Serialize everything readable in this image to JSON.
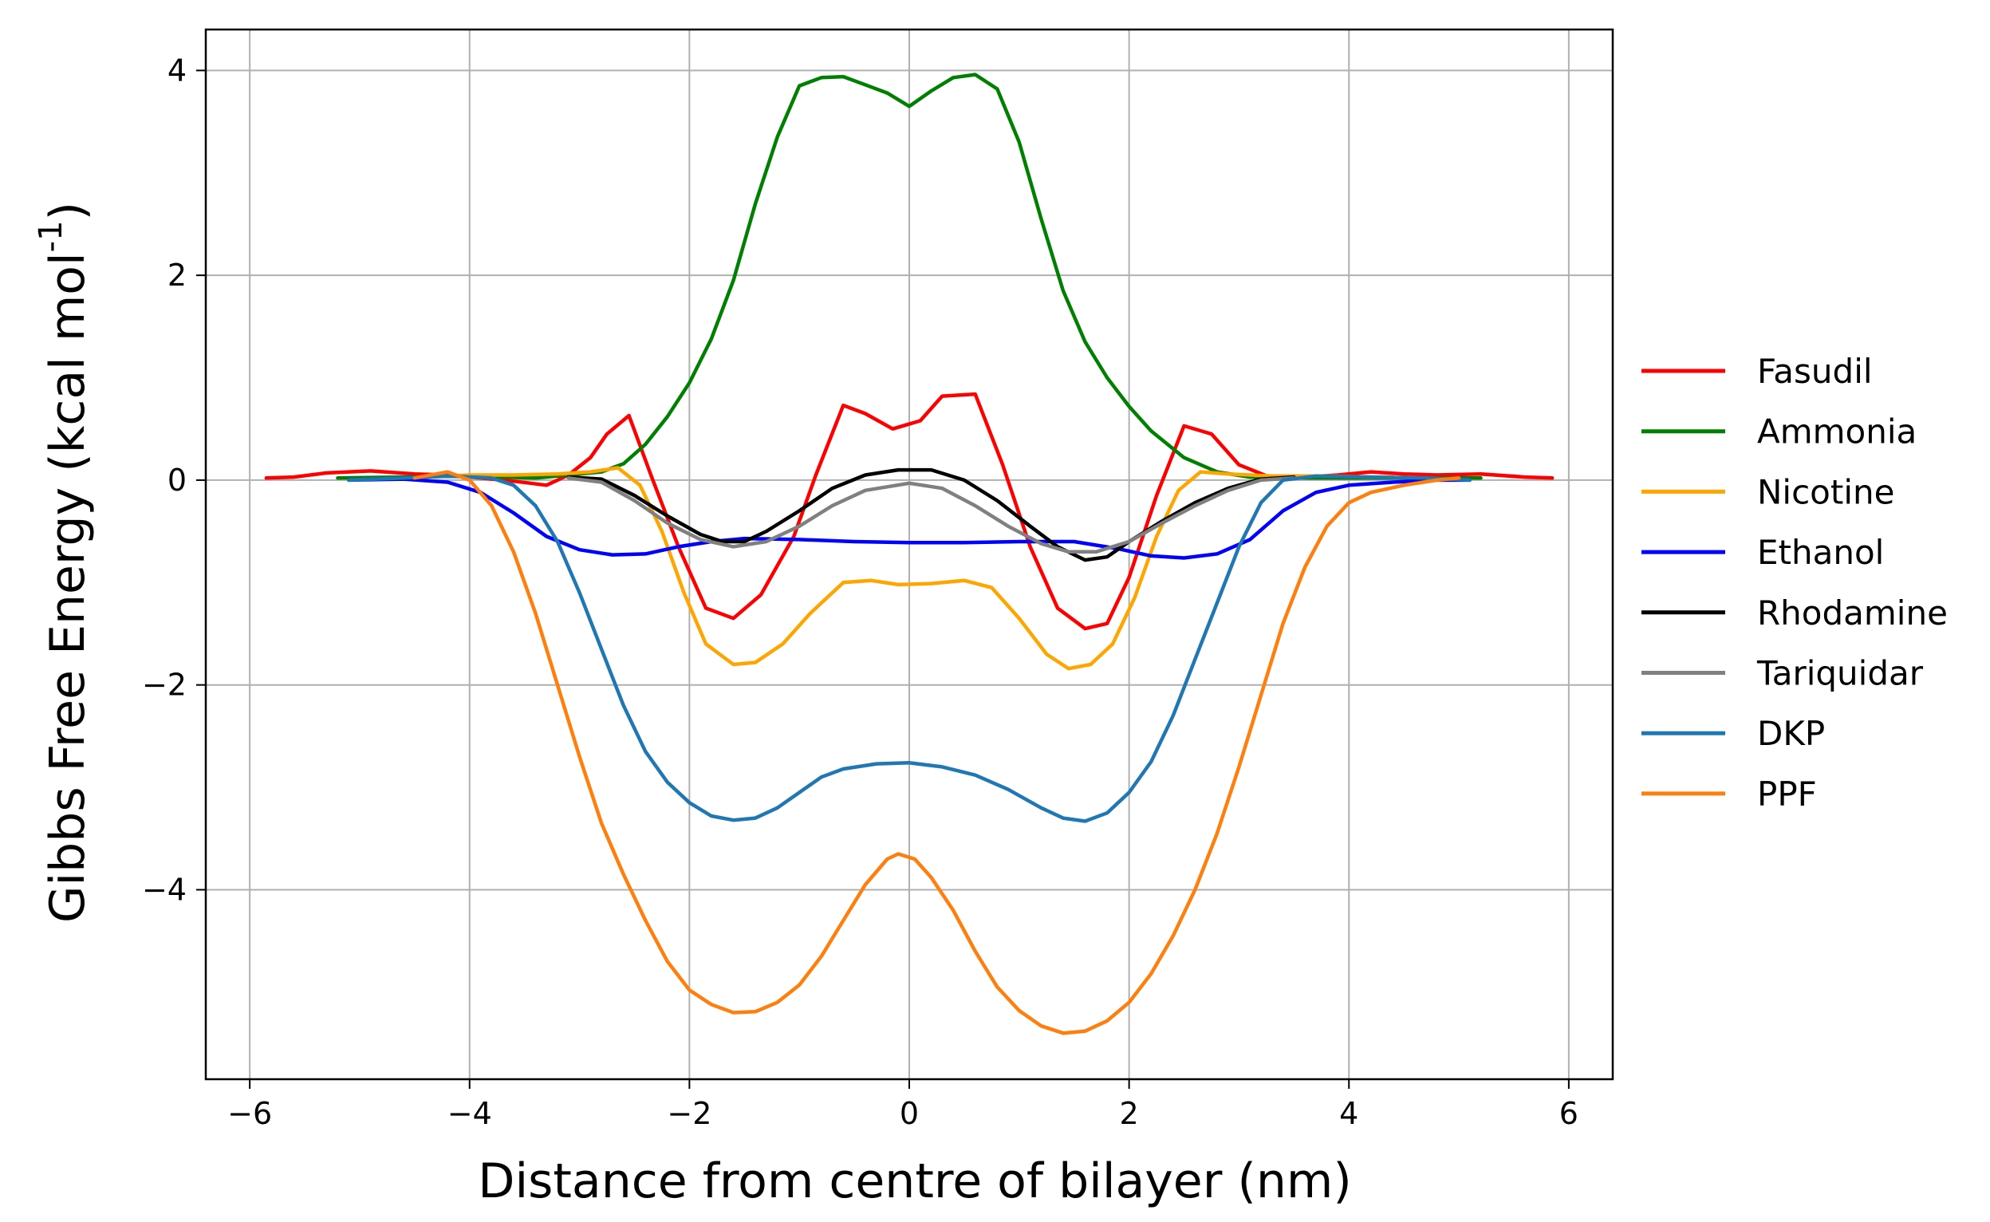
{
  "chart_data": {
    "type": "line",
    "title": "",
    "xlabel": "Distance from centre of bilayer (nm)",
    "ylabel_main": "Gibbs Free Energy (kcal mol",
    "ylabel_sup": "-1",
    "ylabel_close": ")",
    "xlim": [
      -6.4,
      6.4
    ],
    "ylim": [
      -5.85,
      4.4
    ],
    "xticks": [
      -6,
      -4,
      -2,
      0,
      2,
      4,
      6
    ],
    "xtick_labels": [
      "−6",
      "−4",
      "−2",
      "0",
      "2",
      "4",
      "6"
    ],
    "yticks": [
      4,
      2,
      0,
      -2,
      -4
    ],
    "ytick_labels": [
      "4",
      "2",
      "0",
      "−2",
      "−4"
    ],
    "grid": true,
    "legend_position": "right, outside plot",
    "series": [
      {
        "name": "Fasudil",
        "color": "#ff0000",
        "points": [
          [
            -5.85,
            0.02
          ],
          [
            -5.6,
            0.03
          ],
          [
            -5.3,
            0.07
          ],
          [
            -4.9,
            0.09
          ],
          [
            -4.5,
            0.06
          ],
          [
            -4.2,
            0.05
          ],
          [
            -3.9,
            0.02
          ],
          [
            -3.6,
            -0.01
          ],
          [
            -3.3,
            -0.05
          ],
          [
            -3.1,
            0.05
          ],
          [
            -2.9,
            0.22
          ],
          [
            -2.75,
            0.45
          ],
          [
            -2.55,
            0.63
          ],
          [
            -2.35,
            0.05
          ],
          [
            -2.1,
            -0.65
          ],
          [
            -1.85,
            -1.25
          ],
          [
            -1.6,
            -1.35
          ],
          [
            -1.35,
            -1.12
          ],
          [
            -1.05,
            -0.55
          ],
          [
            -0.85,
            0.05
          ],
          [
            -0.6,
            0.73
          ],
          [
            -0.4,
            0.65
          ],
          [
            -0.15,
            0.5
          ],
          [
            0.1,
            0.58
          ],
          [
            0.3,
            0.82
          ],
          [
            0.6,
            0.84
          ],
          [
            0.85,
            0.15
          ],
          [
            1.1,
            -0.65
          ],
          [
            1.35,
            -1.25
          ],
          [
            1.6,
            -1.45
          ],
          [
            1.8,
            -1.4
          ],
          [
            2.0,
            -0.95
          ],
          [
            2.25,
            -0.15
          ],
          [
            2.5,
            0.53
          ],
          [
            2.75,
            0.45
          ],
          [
            3.0,
            0.15
          ],
          [
            3.3,
            0.02
          ],
          [
            3.6,
            0.03
          ],
          [
            3.9,
            0.05
          ],
          [
            4.2,
            0.08
          ],
          [
            4.5,
            0.06
          ],
          [
            4.8,
            0.05
          ],
          [
            5.2,
            0.06
          ],
          [
            5.6,
            0.03
          ],
          [
            5.85,
            0.02
          ]
        ]
      },
      {
        "name": "Ammonia",
        "color": "#008000",
        "points": [
          [
            -5.2,
            0.02
          ],
          [
            -4.6,
            0.03
          ],
          [
            -4.0,
            0.04
          ],
          [
            -3.4,
            0.02
          ],
          [
            -2.8,
            0.08
          ],
          [
            -2.6,
            0.16
          ],
          [
            -2.4,
            0.35
          ],
          [
            -2.2,
            0.62
          ],
          [
            -2.0,
            0.95
          ],
          [
            -1.8,
            1.38
          ],
          [
            -1.6,
            1.95
          ],
          [
            -1.4,
            2.7
          ],
          [
            -1.2,
            3.35
          ],
          [
            -1.0,
            3.85
          ],
          [
            -0.8,
            3.93
          ],
          [
            -0.6,
            3.94
          ],
          [
            -0.4,
            3.86
          ],
          [
            -0.2,
            3.78
          ],
          [
            0.0,
            3.65
          ],
          [
            0.2,
            3.8
          ],
          [
            0.4,
            3.93
          ],
          [
            0.6,
            3.96
          ],
          [
            0.8,
            3.82
          ],
          [
            1.0,
            3.3
          ],
          [
            1.2,
            2.55
          ],
          [
            1.4,
            1.85
          ],
          [
            1.6,
            1.35
          ],
          [
            1.8,
            1.0
          ],
          [
            2.0,
            0.72
          ],
          [
            2.2,
            0.48
          ],
          [
            2.5,
            0.22
          ],
          [
            2.8,
            0.08
          ],
          [
            3.1,
            0.03
          ],
          [
            3.6,
            0.02
          ],
          [
            4.2,
            0.02
          ],
          [
            4.8,
            0.02
          ],
          [
            5.2,
            0.02
          ]
        ]
      },
      {
        "name": "Nicotine",
        "color": "#ffa500",
        "points": [
          [
            -4.4,
            0.03
          ],
          [
            -4.0,
            0.05
          ],
          [
            -3.6,
            0.05
          ],
          [
            -3.2,
            0.06
          ],
          [
            -2.9,
            0.08
          ],
          [
            -2.65,
            0.12
          ],
          [
            -2.45,
            -0.05
          ],
          [
            -2.25,
            -0.5
          ],
          [
            -2.05,
            -1.1
          ],
          [
            -1.85,
            -1.6
          ],
          [
            -1.6,
            -1.8
          ],
          [
            -1.4,
            -1.78
          ],
          [
            -1.15,
            -1.6
          ],
          [
            -0.9,
            -1.3
          ],
          [
            -0.6,
            -1.0
          ],
          [
            -0.35,
            -0.98
          ],
          [
            -0.1,
            -1.02
          ],
          [
            0.2,
            -1.01
          ],
          [
            0.5,
            -0.98
          ],
          [
            0.75,
            -1.05
          ],
          [
            1.0,
            -1.35
          ],
          [
            1.25,
            -1.7
          ],
          [
            1.45,
            -1.84
          ],
          [
            1.65,
            -1.8
          ],
          [
            1.85,
            -1.6
          ],
          [
            2.05,
            -1.15
          ],
          [
            2.25,
            -0.55
          ],
          [
            2.45,
            -0.1
          ],
          [
            2.65,
            0.08
          ],
          [
            2.9,
            0.06
          ],
          [
            3.3,
            0.04
          ],
          [
            3.8,
            0.04
          ],
          [
            4.2,
            0.03
          ],
          [
            4.4,
            0.03
          ]
        ]
      },
      {
        "name": "Ethanol",
        "color": "#0000ff",
        "points": [
          [
            -5.1,
            0.0
          ],
          [
            -4.6,
            0.01
          ],
          [
            -4.2,
            -0.02
          ],
          [
            -3.9,
            -0.12
          ],
          [
            -3.6,
            -0.32
          ],
          [
            -3.3,
            -0.55
          ],
          [
            -3.0,
            -0.68
          ],
          [
            -2.7,
            -0.73
          ],
          [
            -2.4,
            -0.72
          ],
          [
            -2.1,
            -0.65
          ],
          [
            -1.8,
            -0.6
          ],
          [
            -1.5,
            -0.57
          ],
          [
            -1.0,
            -0.58
          ],
          [
            -0.5,
            -0.6
          ],
          [
            0.0,
            -0.61
          ],
          [
            0.5,
            -0.61
          ],
          [
            1.0,
            -0.6
          ],
          [
            1.5,
            -0.6
          ],
          [
            1.9,
            -0.67
          ],
          [
            2.2,
            -0.74
          ],
          [
            2.5,
            -0.76
          ],
          [
            2.8,
            -0.72
          ],
          [
            3.1,
            -0.58
          ],
          [
            3.4,
            -0.3
          ],
          [
            3.7,
            -0.12
          ],
          [
            4.0,
            -0.05
          ],
          [
            4.4,
            -0.02
          ],
          [
            4.8,
            0.0
          ],
          [
            5.1,
            0.0
          ]
        ]
      },
      {
        "name": "Rhodamine",
        "color": "#000000",
        "points": [
          [
            -3.1,
            0.03
          ],
          [
            -2.8,
            0.01
          ],
          [
            -2.5,
            -0.15
          ],
          [
            -2.2,
            -0.35
          ],
          [
            -1.9,
            -0.53
          ],
          [
            -1.7,
            -0.6
          ],
          [
            -1.5,
            -0.6
          ],
          [
            -1.3,
            -0.5
          ],
          [
            -1.0,
            -0.3
          ],
          [
            -0.7,
            -0.08
          ],
          [
            -0.4,
            0.05
          ],
          [
            -0.1,
            0.1
          ],
          [
            0.2,
            0.1
          ],
          [
            0.5,
            0.0
          ],
          [
            0.8,
            -0.2
          ],
          [
            1.1,
            -0.45
          ],
          [
            1.35,
            -0.65
          ],
          [
            1.6,
            -0.78
          ],
          [
            1.8,
            -0.75
          ],
          [
            2.0,
            -0.6
          ],
          [
            2.3,
            -0.4
          ],
          [
            2.6,
            -0.22
          ],
          [
            2.9,
            -0.08
          ],
          [
            3.2,
            0.01
          ],
          [
            3.5,
            0.03
          ]
        ]
      },
      {
        "name": "Tariquidar",
        "color": "#808080",
        "points": [
          [
            -3.1,
            0.02
          ],
          [
            -2.8,
            -0.02
          ],
          [
            -2.5,
            -0.2
          ],
          [
            -2.2,
            -0.42
          ],
          [
            -1.9,
            -0.58
          ],
          [
            -1.6,
            -0.65
          ],
          [
            -1.3,
            -0.6
          ],
          [
            -1.0,
            -0.45
          ],
          [
            -0.7,
            -0.25
          ],
          [
            -0.4,
            -0.1
          ],
          [
            0.0,
            -0.03
          ],
          [
            0.3,
            -0.08
          ],
          [
            0.6,
            -0.25
          ],
          [
            0.9,
            -0.45
          ],
          [
            1.2,
            -0.62
          ],
          [
            1.45,
            -0.7
          ],
          [
            1.7,
            -0.7
          ],
          [
            2.0,
            -0.6
          ],
          [
            2.3,
            -0.42
          ],
          [
            2.6,
            -0.25
          ],
          [
            2.9,
            -0.1
          ],
          [
            3.2,
            0.0
          ],
          [
            3.5,
            0.02
          ]
        ]
      },
      {
        "name": "DKP",
        "color": "#1f77b4",
        "points": [
          [
            -5.1,
            0.0
          ],
          [
            -4.6,
            0.02
          ],
          [
            -4.2,
            0.04
          ],
          [
            -3.8,
            0.02
          ],
          [
            -3.6,
            -0.05
          ],
          [
            -3.4,
            -0.25
          ],
          [
            -3.2,
            -0.6
          ],
          [
            -3.0,
            -1.1
          ],
          [
            -2.8,
            -1.65
          ],
          [
            -2.6,
            -2.2
          ],
          [
            -2.4,
            -2.65
          ],
          [
            -2.2,
            -2.95
          ],
          [
            -2.0,
            -3.15
          ],
          [
            -1.8,
            -3.28
          ],
          [
            -1.6,
            -3.32
          ],
          [
            -1.4,
            -3.3
          ],
          [
            -1.2,
            -3.2
          ],
          [
            -1.0,
            -3.05
          ],
          [
            -0.8,
            -2.9
          ],
          [
            -0.6,
            -2.82
          ],
          [
            -0.3,
            -2.77
          ],
          [
            0.0,
            -2.76
          ],
          [
            0.3,
            -2.8
          ],
          [
            0.6,
            -2.88
          ],
          [
            0.9,
            -3.02
          ],
          [
            1.2,
            -3.2
          ],
          [
            1.4,
            -3.3
          ],
          [
            1.6,
            -3.33
          ],
          [
            1.8,
            -3.25
          ],
          [
            2.0,
            -3.05
          ],
          [
            2.2,
            -2.75
          ],
          [
            2.4,
            -2.3
          ],
          [
            2.6,
            -1.75
          ],
          [
            2.8,
            -1.2
          ],
          [
            3.0,
            -0.65
          ],
          [
            3.2,
            -0.22
          ],
          [
            3.4,
            0.0
          ],
          [
            3.7,
            0.04
          ],
          [
            4.2,
            0.03
          ],
          [
            4.7,
            0.02
          ],
          [
            5.1,
            0.0
          ]
        ]
      },
      {
        "name": "PPF",
        "color": "#ff7f0e",
        "points": [
          [
            -4.5,
            0.02
          ],
          [
            -4.2,
            0.08
          ],
          [
            -4.0,
            0.0
          ],
          [
            -3.8,
            -0.25
          ],
          [
            -3.6,
            -0.7
          ],
          [
            -3.4,
            -1.3
          ],
          [
            -3.2,
            -2.0
          ],
          [
            -3.0,
            -2.7
          ],
          [
            -2.8,
            -3.35
          ],
          [
            -2.6,
            -3.85
          ],
          [
            -2.4,
            -4.3
          ],
          [
            -2.2,
            -4.7
          ],
          [
            -2.0,
            -4.98
          ],
          [
            -1.8,
            -5.12
          ],
          [
            -1.6,
            -5.2
          ],
          [
            -1.4,
            -5.19
          ],
          [
            -1.2,
            -5.1
          ],
          [
            -1.0,
            -4.93
          ],
          [
            -0.8,
            -4.65
          ],
          [
            -0.6,
            -4.3
          ],
          [
            -0.4,
            -3.95
          ],
          [
            -0.2,
            -3.7
          ],
          [
            -0.1,
            -3.65
          ],
          [
            0.05,
            -3.7
          ],
          [
            0.2,
            -3.88
          ],
          [
            0.4,
            -4.2
          ],
          [
            0.6,
            -4.6
          ],
          [
            0.8,
            -4.95
          ],
          [
            1.0,
            -5.18
          ],
          [
            1.2,
            -5.33
          ],
          [
            1.4,
            -5.4
          ],
          [
            1.6,
            -5.38
          ],
          [
            1.8,
            -5.28
          ],
          [
            2.0,
            -5.1
          ],
          [
            2.2,
            -4.82
          ],
          [
            2.4,
            -4.45
          ],
          [
            2.6,
            -4.0
          ],
          [
            2.8,
            -3.45
          ],
          [
            3.0,
            -2.8
          ],
          [
            3.2,
            -2.1
          ],
          [
            3.4,
            -1.4
          ],
          [
            3.6,
            -0.85
          ],
          [
            3.8,
            -0.45
          ],
          [
            4.0,
            -0.22
          ],
          [
            4.2,
            -0.12
          ],
          [
            4.5,
            -0.05
          ],
          [
            4.8,
            0.0
          ],
          [
            5.0,
            0.02
          ]
        ]
      }
    ]
  }
}
